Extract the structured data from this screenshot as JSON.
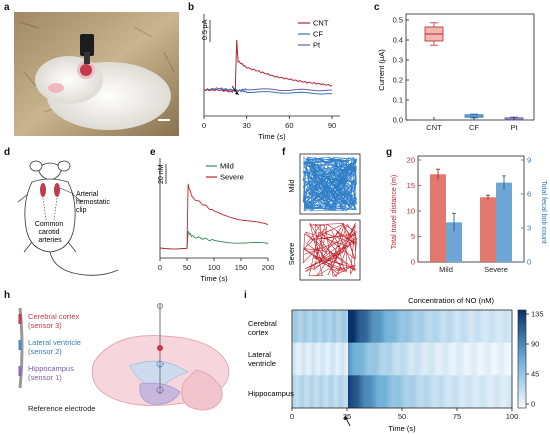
{
  "panel_letters": [
    "a",
    "b",
    "c",
    "d",
    "e",
    "f",
    "g",
    "h",
    "i"
  ],
  "colors": {
    "cnt": "#b5253a",
    "cf": "#2f73b7",
    "pt": "#6a5ba8",
    "mild": "#2e8b57",
    "severe": "#c0242f",
    "lightblue": "#6ea7d6",
    "heat_dark": "#08306b",
    "heat_light": "#f1f6fb"
  },
  "panel_b": {
    "scale_label": "0.5 μA",
    "legend": [
      "CNT",
      "CF",
      "Pt"
    ],
    "xlabel": "Time (s)",
    "ticks_x": [
      "0",
      "30",
      "60",
      "90"
    ]
  },
  "panel_c": {
    "ylabel": "Current (μA)",
    "ticks_y": [
      "0.0",
      "0.1",
      "0.2",
      "0.3",
      "0.4",
      "0.5"
    ],
    "categories": [
      "CNT",
      "CF",
      "Pt"
    ]
  },
  "panel_d": {
    "label_clip": "Arterial\nhemostatic\nclip",
    "label_arteries": "Common\ncarotid\narteries"
  },
  "panel_e": {
    "scale_label": "20 nM",
    "legend": [
      "Mild",
      "Severe"
    ],
    "xlabel": "Time (s)",
    "ticks_x": [
      "0",
      "50",
      "100",
      "150",
      "200"
    ]
  },
  "panel_f": {
    "labels": [
      "Mild",
      "Severe"
    ]
  },
  "panel_g": {
    "ylabel_left": "Total travel distance (m)",
    "ylabel_right": "Total fecal boli count",
    "ticks_left": [
      "0",
      "5",
      "10",
      "15",
      "20"
    ],
    "ticks_right": [
      "0",
      "3",
      "6",
      "9"
    ],
    "categories": [
      "Mild",
      "Severe"
    ]
  },
  "panel_h": {
    "labels": [
      "Cerebral cortex",
      "(sensor 3)",
      "Lateral ventricle",
      "(sensor 2)",
      "Hippocampus",
      "(sensor 1)",
      "Reference electrode"
    ]
  },
  "panel_i": {
    "title": "Concentration of NO (nM)",
    "rows": [
      "Cerebral\ncortex",
      "Lateral\nventricle",
      "Hippocampus"
    ],
    "ticks_x": [
      "0",
      "25",
      "50",
      "75",
      "100"
    ],
    "xlabel": "Time (s)",
    "colorbar_ticks": [
      "135",
      "90",
      "45",
      "0"
    ]
  },
  "chart_data": [
    {
      "type": "line",
      "panel": "b",
      "xlabel": "Time (s)",
      "xlim": [
        0,
        90
      ],
      "series": [
        {
          "name": "CNT",
          "x": [
            0,
            10,
            20,
            22,
            23,
            24,
            30,
            40,
            50,
            60,
            70,
            80,
            90
          ],
          "y": [
            0.0,
            0.0,
            -0.02,
            0.0,
            0.55,
            0.32,
            0.25,
            0.2,
            0.15,
            0.12,
            0.09,
            0.07,
            0.05
          ]
        },
        {
          "name": "CF",
          "x": [
            0,
            10,
            20,
            22,
            30,
            60,
            90
          ],
          "y": [
            0.0,
            0.02,
            0.0,
            0.0,
            -0.02,
            -0.03,
            -0.04
          ]
        },
        {
          "name": "Pt",
          "x": [
            0,
            10,
            20,
            22,
            30,
            60,
            90
          ],
          "y": [
            0.0,
            0.0,
            0.0,
            -0.01,
            0.01,
            0.0,
            0.0
          ]
        }
      ]
    },
    {
      "type": "bar",
      "panel": "c",
      "ylabel": "Current (μA)",
      "ylim": [
        0,
        0.5
      ],
      "categories": [
        "CNT",
        "CF",
        "Pt"
      ],
      "values": [
        0.43,
        0.02,
        0.005
      ]
    },
    {
      "type": "line",
      "panel": "e",
      "xlabel": "Time (s)",
      "xlim": [
        0,
        200
      ],
      "series": [
        {
          "name": "Mild",
          "x": [
            0,
            50,
            52,
            60,
            100,
            150,
            200
          ],
          "y": [
            0,
            0,
            15,
            11,
            7,
            5,
            4
          ]
        },
        {
          "name": "Severe",
          "x": [
            0,
            50,
            52,
            60,
            100,
            150,
            200
          ],
          "y": [
            0,
            0,
            60,
            48,
            35,
            27,
            22
          ]
        }
      ]
    },
    {
      "type": "bar",
      "panel": "g",
      "categories": [
        "Mild",
        "Severe"
      ],
      "series": [
        {
          "name": "Total travel distance (m)",
          "values": [
            17.2,
            12.7
          ]
        },
        {
          "name": "Total fecal boli count",
          "values": [
            3.5,
            7.0
          ]
        }
      ]
    },
    {
      "type": "heatmap",
      "panel": "i",
      "xlabel": "Time (s)",
      "xlim": [
        0,
        100
      ],
      "rows": [
        "Cerebral cortex",
        "Lateral ventricle",
        "Hippocampus"
      ],
      "colorbar_range": [
        0,
        135
      ]
    }
  ]
}
